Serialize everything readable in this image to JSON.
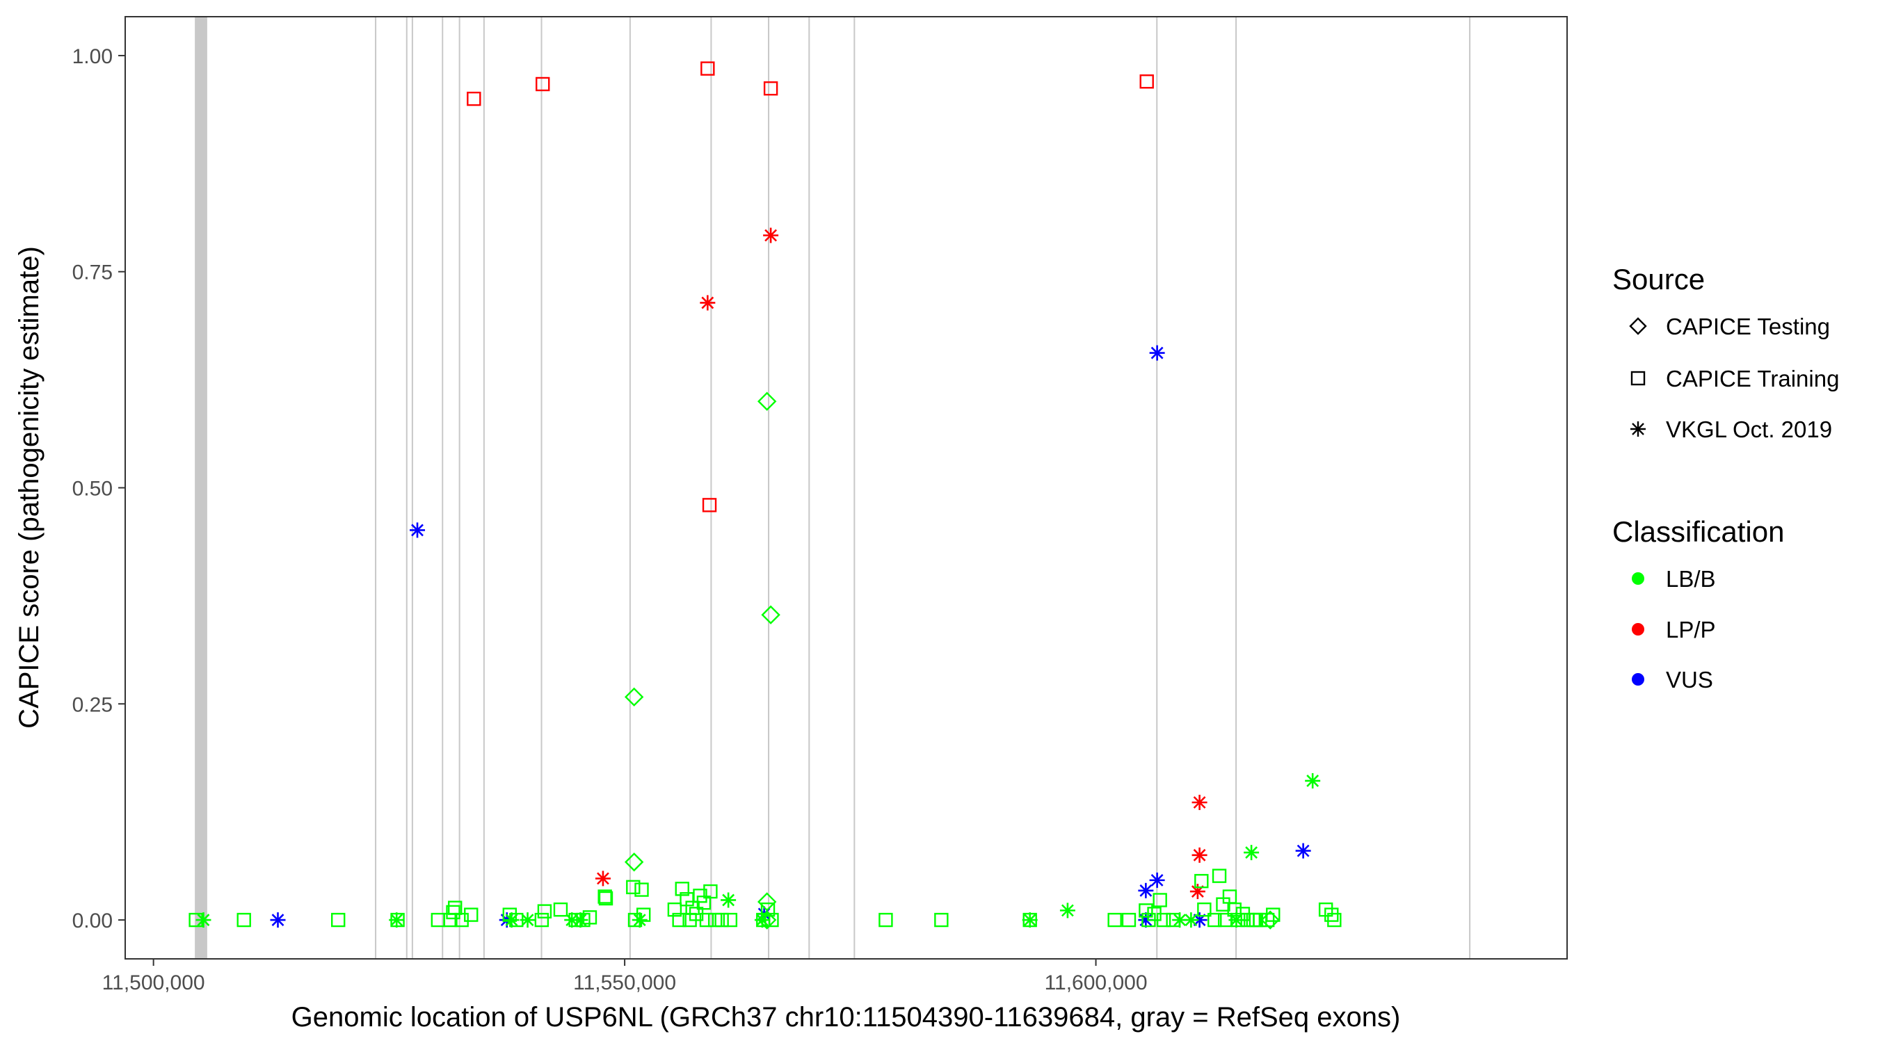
{
  "chart_data": {
    "type": "scatter",
    "xlabel": "Genomic location of USP6NL (GRCh37 chr10:11504390-11639684, gray = RefSeq exons)",
    "ylabel": "CAPICE score (pathogenicity estimate)",
    "xlim": [
      11497000,
      11650000
    ],
    "ylim": [
      -0.045,
      1.045
    ],
    "x_ticks": [
      11500000,
      11550000,
      11600000
    ],
    "x_tick_labels": [
      "11,500,000",
      "11,550,000",
      "11,600,000"
    ],
    "y_ticks": [
      0,
      0.25,
      0.5,
      0.75,
      1
    ],
    "y_tick_labels": [
      "0.00",
      "0.25",
      "0.50",
      "0.75",
      "1.00"
    ],
    "grid": false,
    "exons": [
      [
        11504390,
        11505700
      ],
      [
        11523500,
        11523600
      ],
      [
        11526800,
        11526900
      ],
      [
        11527400,
        11527500
      ],
      [
        11530600,
        11530700
      ],
      [
        11532400,
        11532500
      ],
      [
        11535000,
        11535100
      ],
      [
        11541100,
        11541200
      ],
      [
        11550500,
        11550600
      ],
      [
        11559100,
        11559200
      ],
      [
        11565200,
        11565300
      ],
      [
        11569500,
        11569600
      ],
      [
        11574300,
        11574400
      ],
      [
        11606400,
        11606500
      ],
      [
        11614800,
        11614900
      ],
      [
        11639600,
        11639684
      ]
    ],
    "legend": {
      "source_title": "Source",
      "source_items": [
        {
          "label": "CAPICE Testing",
          "shape": "diamond"
        },
        {
          "label": "CAPICE Training",
          "shape": "square"
        },
        {
          "label": "VKGL Oct. 2019",
          "shape": "asterisk"
        }
      ],
      "class_title": "Classification",
      "class_items": [
        {
          "label": "LB/B",
          "color": "#00ff00"
        },
        {
          "label": "LP/P",
          "color": "#ff0000"
        },
        {
          "label": "VUS",
          "color": "#0000ff"
        }
      ]
    },
    "colors": {
      "LB/B": "#00ff00",
      "LP/P": "#ff0000",
      "VUS": "#0000ff"
    },
    "series": [
      {
        "name": "CAPICE Training",
        "shape": "square",
        "class": "LP/P",
        "x": [
          11534000,
          11541300,
          11558800,
          11565500,
          11605400,
          11559000
        ],
        "y": [
          0.95,
          0.967,
          0.985,
          0.962,
          0.97,
          0.48
        ]
      },
      {
        "name": "VKGL Oct. 2019",
        "shape": "asterisk",
        "class": "LP/P",
        "x": [
          11558800,
          11565500,
          11547700,
          11611000,
          11611000,
          11610800
        ],
        "y": [
          0.714,
          0.792,
          0.048,
          0.136,
          0.075,
          0.033
        ]
      },
      {
        "name": "VKGL Oct. 2019",
        "shape": "asterisk",
        "class": "VUS",
        "x": [
          11513200,
          11528000,
          11606500,
          11605300,
          11605300,
          11622000,
          11537500,
          11564800,
          11611000
        ],
        "y": [
          0.0,
          0.451,
          0.656,
          0.034,
          0.0,
          0.08,
          0.0,
          0.007,
          0.0
        ],
        "x2": [
          11606500
        ],
        "y2": [
          0.046
        ]
      },
      {
        "name": "CAPICE Testing",
        "shape": "diamond",
        "class": "LB/B",
        "x": [
          11565100,
          11565500,
          11551000,
          11551000,
          11565100,
          11565100,
          11618500
        ],
        "y": [
          0.6,
          0.353,
          0.258,
          0.067,
          0.021,
          0.0,
          0.0
        ]
      },
      {
        "name": "VKGL Oct. 2019",
        "shape": "asterisk",
        "class": "LB/B",
        "x": [
          11623000,
          11616500,
          11561000,
          11597000,
          11505300,
          11525800,
          11538000,
          11539700,
          11544400,
          11545300,
          11551600,
          11564600,
          11593000,
          11608900,
          11610100,
          11614900
        ],
        "y": [
          0.161,
          0.078,
          0.023,
          0.011,
          0.0,
          0.0,
          0.0,
          0.0,
          0.0,
          0.0,
          0.0,
          0.0,
          0.0,
          0.0,
          0.0,
          0.0
        ]
      },
      {
        "name": "CAPICE Training",
        "shape": "square",
        "class": "LB/B",
        "x": [
          11504500,
          11509600,
          11519600,
          11525900,
          11530200,
          11531500,
          11531800,
          11532000,
          11532700,
          11533700,
          11537800,
          11538500,
          11541200,
          11541500,
          11543200,
          11544800,
          11545600,
          11546300,
          11547900,
          11548000,
          11550900,
          11551100,
          11551800,
          11552000,
          11555300,
          11555800,
          11556100,
          11556600,
          11556900,
          11557200,
          11557600,
          11558000,
          11558400,
          11558700,
          11559100,
          11559600,
          11560300,
          11561200,
          11564700,
          11565200,
          11565600,
          11577700,
          11583600,
          11593000,
          11602000,
          11603500,
          11605300,
          11605600,
          11606200,
          11606800,
          11607200,
          11608200,
          11611200,
          11611500,
          11612600,
          11613100,
          11613500,
          11613700,
          11614200,
          11614700,
          11615100,
          11615600,
          11616100,
          11616700,
          11617000,
          11617400,
          11618200,
          11618800,
          11624400,
          11625000,
          11625300
        ],
        "y": [
          0.0,
          0.0,
          0.0,
          0.0,
          0.0,
          0.0,
          0.009,
          0.014,
          0.0,
          0.006,
          0.006,
          0.0,
          0.0,
          0.01,
          0.012,
          0.0,
          0.0,
          0.003,
          0.027,
          0.025,
          0.038,
          0.0,
          0.035,
          0.006,
          0.012,
          0.0,
          0.036,
          0.024,
          0.0,
          0.014,
          0.007,
          0.028,
          0.02,
          0.0,
          0.033,
          0.0,
          0.0,
          0.0,
          0.0,
          0.012,
          0.0,
          0.0,
          0.0,
          0.0,
          0.0,
          0.0,
          0.011,
          0.0,
          0.007,
          0.023,
          0.0,
          0.0,
          0.045,
          0.012,
          0.0,
          0.051,
          0.018,
          0.0,
          0.027,
          0.012,
          0.0,
          0.007,
          0.0,
          0.0,
          0.0,
          0.0,
          0.0,
          0.006,
          0.012,
          0.006,
          0.0
        ]
      }
    ]
  }
}
